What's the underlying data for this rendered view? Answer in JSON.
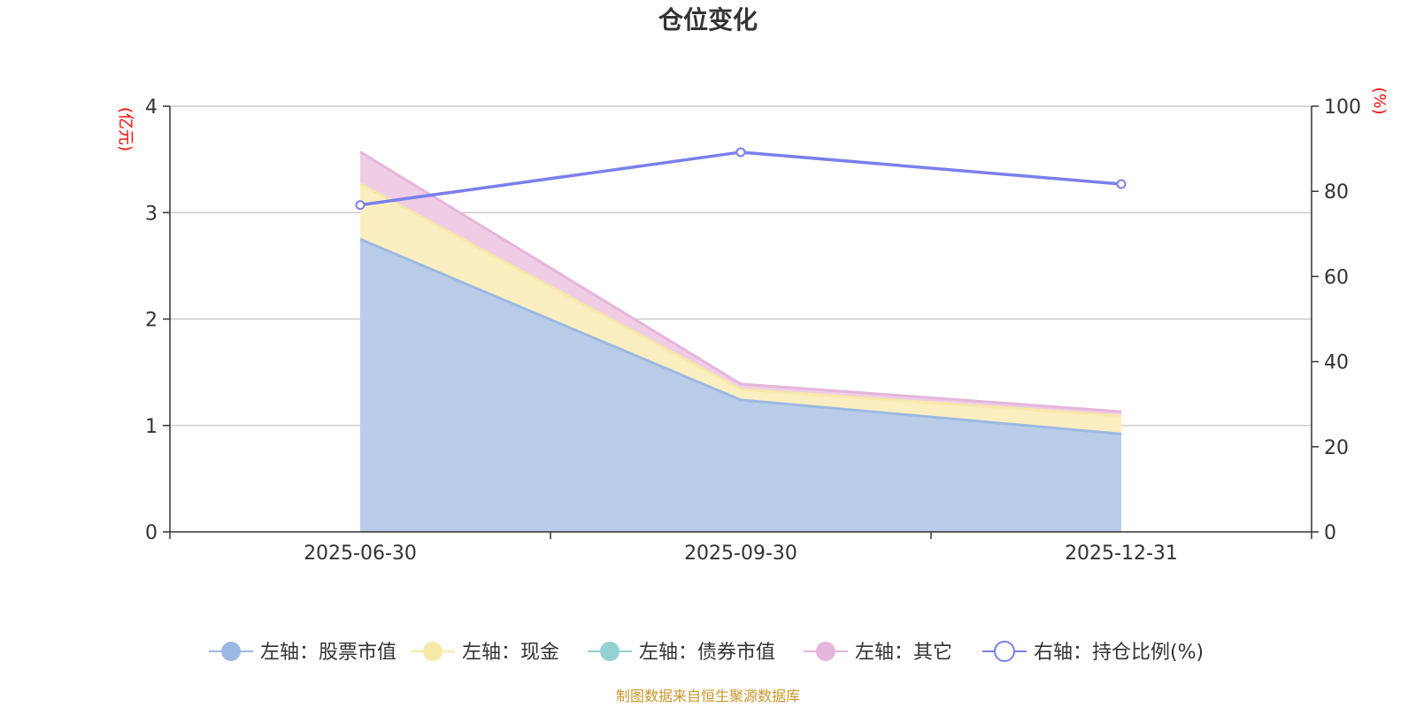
{
  "chart_data": {
    "type": "area",
    "title": "仓位变化",
    "categories": [
      "2025-06-30",
      "2025-09-30",
      "2025-12-31"
    ],
    "left_axis": {
      "unit": "(亿元)",
      "range": [
        0,
        4
      ],
      "ticks": [
        "0",
        "1",
        "2",
        "3",
        "4"
      ]
    },
    "right_axis": {
      "unit": "(%)",
      "range": [
        0,
        100
      ],
      "ticks": [
        "0",
        "20",
        "40",
        "60",
        "80",
        "100"
      ]
    },
    "stacked_series": [
      {
        "name": "左轴：股票市值",
        "color": "#9db8e2",
        "fill": "#b9cdea",
        "values": [
          2.75,
          1.24,
          0.92
        ]
      },
      {
        "name": "左轴：现金",
        "color": "#f6e8a7",
        "fill": "#fbefc1",
        "values": [
          0.52,
          0.1,
          0.17
        ]
      },
      {
        "name": "左轴：债券市值",
        "color": "#93d2d2",
        "fill": "#bfe5e5",
        "values": [
          0,
          0,
          0
        ]
      },
      {
        "name": "左轴：其它",
        "color": "#e5b6dc",
        "fill": "#efcde5",
        "values": [
          0.3,
          0.05,
          0.04
        ]
      }
    ],
    "line_series": {
      "name": "右轴：持仓比例(%)",
      "color": "#7b7fec",
      "axis": "right",
      "values": [
        76.8,
        89.2,
        81.7
      ]
    },
    "legend_position": "bottom",
    "grid": true,
    "source": "制图数据来自恒生聚源数据库",
    "source_color": "#c8962a",
    "unit_color": "#ff0000"
  }
}
